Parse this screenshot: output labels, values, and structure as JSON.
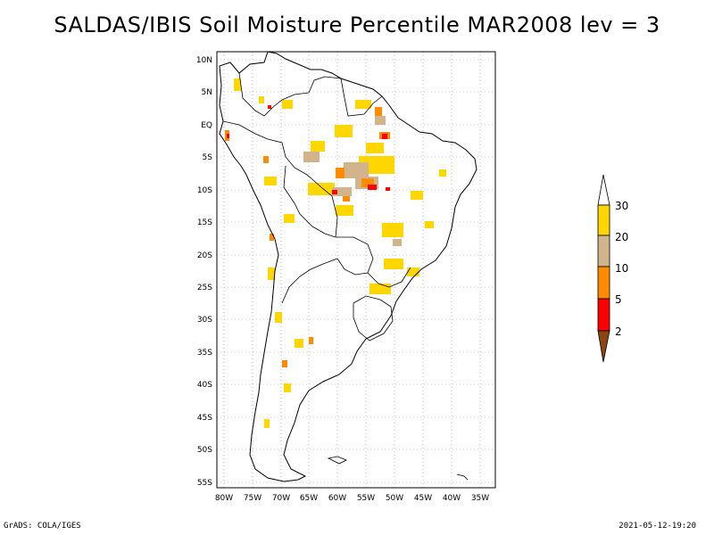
{
  "title": "SALDAS/IBIS Soil Moisture Percentile MAR2008 lev = 3",
  "lat_labels": [
    "10N",
    "5N",
    "EQ",
    "5S",
    "10S",
    "15S",
    "20S",
    "25S",
    "30S",
    "35S",
    "40S",
    "45S",
    "50S",
    "55S"
  ],
  "lon_labels": [
    "80W",
    "75W",
    "70W",
    "65W",
    "60W",
    "55W",
    "50W",
    "45W",
    "40W",
    "35W"
  ],
  "colorbar": {
    "labels": [
      "30",
      "20",
      "10",
      "5",
      "2"
    ],
    "colors": {
      "c30": "#ffd700",
      "c20": "#d2b48c",
      "c10": "#ff8c00",
      "c5": "#ff0000",
      "c2": "#8b4513",
      "top": "#ffffff"
    }
  },
  "footer_left": "GrADS: COLA/IGES",
  "footer_right": "2021-05-12-19:20"
}
